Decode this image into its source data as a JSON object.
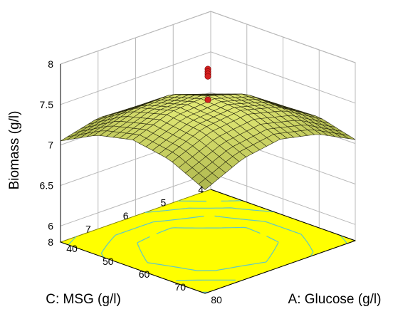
{
  "chart_data": {
    "type": "surface",
    "title": "",
    "xlabel": "A: Glucose (g/l)",
    "ylabel": "C: MSG (g/l)",
    "zlabel": "Biomass (g/l)",
    "x_ticks": [
      "40",
      "50",
      "60",
      "70",
      "80"
    ],
    "y_ticks": [
      "4",
      "5",
      "6",
      "7",
      "8"
    ],
    "z_ticks": [
      "6",
      "6.5",
      "7",
      "7.5",
      "8"
    ],
    "xlim": [
      40,
      80
    ],
    "ylim": [
      4,
      8
    ],
    "zlim": [
      5.8,
      8
    ],
    "surface": {
      "x": [
        40,
        50,
        60,
        70,
        80
      ],
      "y": [
        4,
        5,
        6,
        7,
        8
      ],
      "z": [
        [
          6.55,
          6.95,
          7.15,
          7.17,
          7.05
        ],
        [
          6.95,
          7.3,
          7.46,
          7.44,
          7.28
        ],
        [
          7.15,
          7.46,
          7.6,
          7.56,
          7.38
        ],
        [
          7.17,
          7.44,
          7.56,
          7.5,
          7.3
        ],
        [
          7.05,
          7.28,
          7.38,
          7.3,
          7.08
        ]
      ],
      "color_low": "#6f7a1e",
      "color_high": "#e8ef7a",
      "floor_color": "#ffff00",
      "contour_color": "#5ec8c8"
    },
    "design_points": [
      {
        "x": 60,
        "y": 6,
        "z": 7.93
      },
      {
        "x": 60,
        "y": 6,
        "z": 7.9
      },
      {
        "x": 60,
        "y": 6,
        "z": 7.87
      },
      {
        "x": 60,
        "y": 6,
        "z": 7.84
      },
      {
        "x": 60,
        "y": 6,
        "z": 7.55
      }
    ],
    "point_color": "#d42020",
    "grid": true
  }
}
